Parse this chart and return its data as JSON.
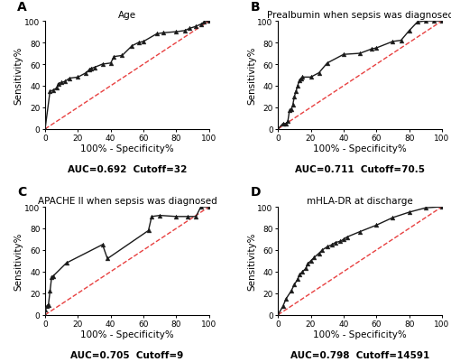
{
  "panels": [
    {
      "label": "A",
      "title": "Age",
      "auc_text": "AUC=0.692  Cutoff=32",
      "roc_x": [
        0,
        3,
        5,
        7,
        8,
        10,
        12,
        15,
        20,
        25,
        27,
        28,
        30,
        35,
        40,
        42,
        47,
        53,
        57,
        60,
        68,
        72,
        80,
        85,
        88,
        92,
        95,
        97,
        100
      ],
      "roc_y": [
        0,
        35,
        36,
        38,
        42,
        43,
        44,
        47,
        48,
        52,
        55,
        56,
        57,
        60,
        61,
        67,
        68,
        77,
        80,
        81,
        88,
        89,
        90,
        91,
        93,
        95,
        97,
        99,
        100
      ]
    },
    {
      "label": "B",
      "title": "Prealbumin when sepsis was diagnosed",
      "auc_text": "AUC=0.711  Cutoff=70.5",
      "roc_x": [
        0,
        3,
        5,
        6,
        7,
        8,
        9,
        10,
        11,
        12,
        13,
        14,
        15,
        20,
        25,
        30,
        40,
        50,
        57,
        60,
        70,
        75,
        80,
        85,
        90,
        95,
        100
      ],
      "roc_y": [
        0,
        5,
        5,
        7,
        17,
        18,
        22,
        30,
        35,
        40,
        45,
        47,
        48,
        48,
        52,
        61,
        69,
        70,
        74,
        75,
        81,
        82,
        91,
        99,
        100,
        100,
        100
      ]
    },
    {
      "label": "C",
      "title": "APACHE II when sepsis was diagnosed",
      "auc_text": "AUC=0.705  Cutoff=9",
      "roc_x": [
        0,
        0,
        1,
        2,
        3,
        4,
        5,
        13,
        35,
        38,
        63,
        65,
        70,
        80,
        87,
        92,
        95,
        100
      ],
      "roc_y": [
        0,
        5,
        8,
        9,
        22,
        35,
        36,
        48,
        65,
        52,
        78,
        91,
        92,
        91,
        91,
        91,
        100,
        100
      ]
    },
    {
      "label": "D",
      "title": "mHLA-DR at discharge",
      "auc_text": "AUC=0.798  Cutoff=14591",
      "roc_x": [
        0,
        3,
        5,
        8,
        10,
        12,
        13,
        15,
        17,
        18,
        20,
        22,
        25,
        27,
        30,
        33,
        35,
        38,
        40,
        42,
        50,
        60,
        70,
        80,
        90,
        100
      ],
      "roc_y": [
        0,
        8,
        15,
        22,
        28,
        33,
        37,
        40,
        43,
        47,
        50,
        53,
        57,
        60,
        63,
        65,
        67,
        68,
        70,
        72,
        77,
        83,
        90,
        95,
        99,
        100
      ]
    }
  ],
  "line_color": "#1a1a1a",
  "ref_color": "#e84040",
  "marker": "^",
  "marker_size": 3.5,
  "line_width": 1.0,
  "xlabel": "100% - Specificity%",
  "ylabel": "Sensitivity%",
  "xlim": [
    0,
    100
  ],
  "ylim": [
    0,
    100
  ],
  "xticks": [
    0,
    20,
    40,
    60,
    80,
    100
  ],
  "yticks": [
    0,
    20,
    40,
    60,
    80,
    100
  ],
  "tick_fontsize": 6.5,
  "label_fontsize": 7.5,
  "title_fontsize": 7.5,
  "auc_fontsize": 7.5,
  "panel_label_fontsize": 10,
  "background": "#ffffff"
}
